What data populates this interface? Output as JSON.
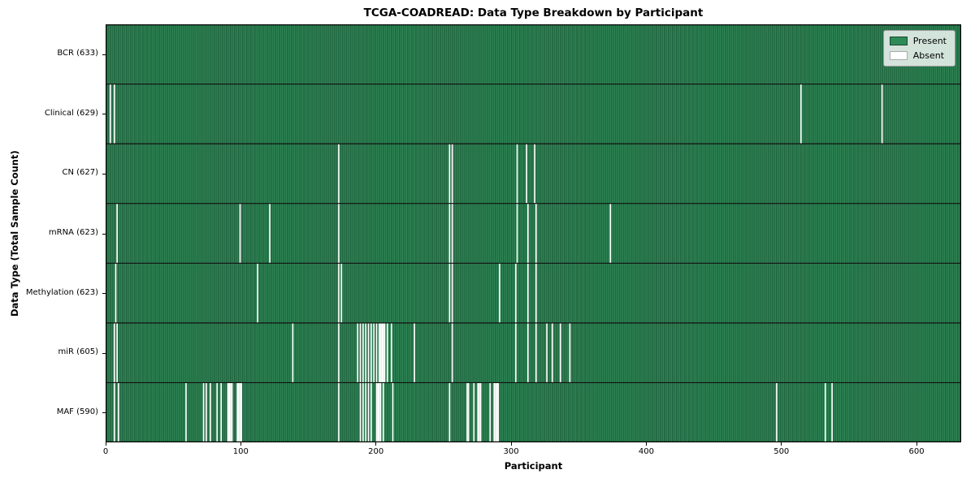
{
  "chart_data": {
    "type": "heatmap",
    "title": "TCGA-COADREAD: Data Type Breakdown by Participant",
    "xlabel": "Participant",
    "ylabel": "Data Type (Total Sample Count)",
    "x_ticks": [
      0,
      100,
      200,
      300,
      400,
      500,
      600
    ],
    "xlim": [
      0,
      633
    ],
    "n_participants": 633,
    "grid": false,
    "legend_position": "upper right",
    "colors": {
      "present": "#2e8b57",
      "present_edge": "#1a4a30",
      "absent": "#ffffff",
      "separator": "#111111",
      "border": "#000000"
    },
    "legend": [
      {
        "label": "Present",
        "color": "#2e8b57",
        "edge": "#1a4a30"
      },
      {
        "label": "Absent",
        "color": "#ffffff",
        "edge": "#aaaaaa"
      }
    ],
    "rows": [
      {
        "data_type": "BCR",
        "label": "BCR (633)",
        "total_samples": 633,
        "absent_participants": []
      },
      {
        "data_type": "Clinical",
        "label": "Clinical (629)",
        "total_samples": 629,
        "absent_participants": [
          3,
          6,
          514,
          574
        ]
      },
      {
        "data_type": "CN",
        "label": "CN (627)",
        "total_samples": 627,
        "absent_participants": [
          172,
          254,
          256,
          304,
          311,
          317
        ]
      },
      {
        "data_type": "mRNA",
        "label": "mRNA (623)",
        "total_samples": 623,
        "absent_participants": [
          8,
          99,
          121,
          172,
          254,
          256,
          304,
          312,
          318,
          373
        ]
      },
      {
        "data_type": "Methylation",
        "label": "Methylation (623)",
        "total_samples": 623,
        "absent_participants": [
          7,
          112,
          172,
          174,
          254,
          256,
          291,
          303,
          312,
          318
        ]
      },
      {
        "data_type": "miR",
        "label": "miR (605)",
        "total_samples": 605,
        "absent_participants": [
          6,
          8,
          138,
          172,
          186,
          188,
          190,
          192,
          194,
          196,
          198,
          200,
          202,
          203,
          204,
          205,
          206,
          208,
          211,
          228,
          256,
          303,
          312,
          318,
          326,
          330,
          336,
          343
        ]
      },
      {
        "data_type": "MAF",
        "label": "MAF (590)",
        "total_samples": 590,
        "absent_participants": [
          6,
          9,
          59,
          72,
          74,
          77,
          82,
          85,
          90,
          91,
          92,
          93,
          97,
          98,
          99,
          100,
          172,
          188,
          190,
          192,
          194,
          196,
          200,
          201,
          202,
          203,
          205,
          212,
          254,
          267,
          268,
          272,
          275,
          276,
          277,
          284,
          287,
          288,
          289,
          290,
          496,
          532,
          537
        ]
      }
    ]
  }
}
